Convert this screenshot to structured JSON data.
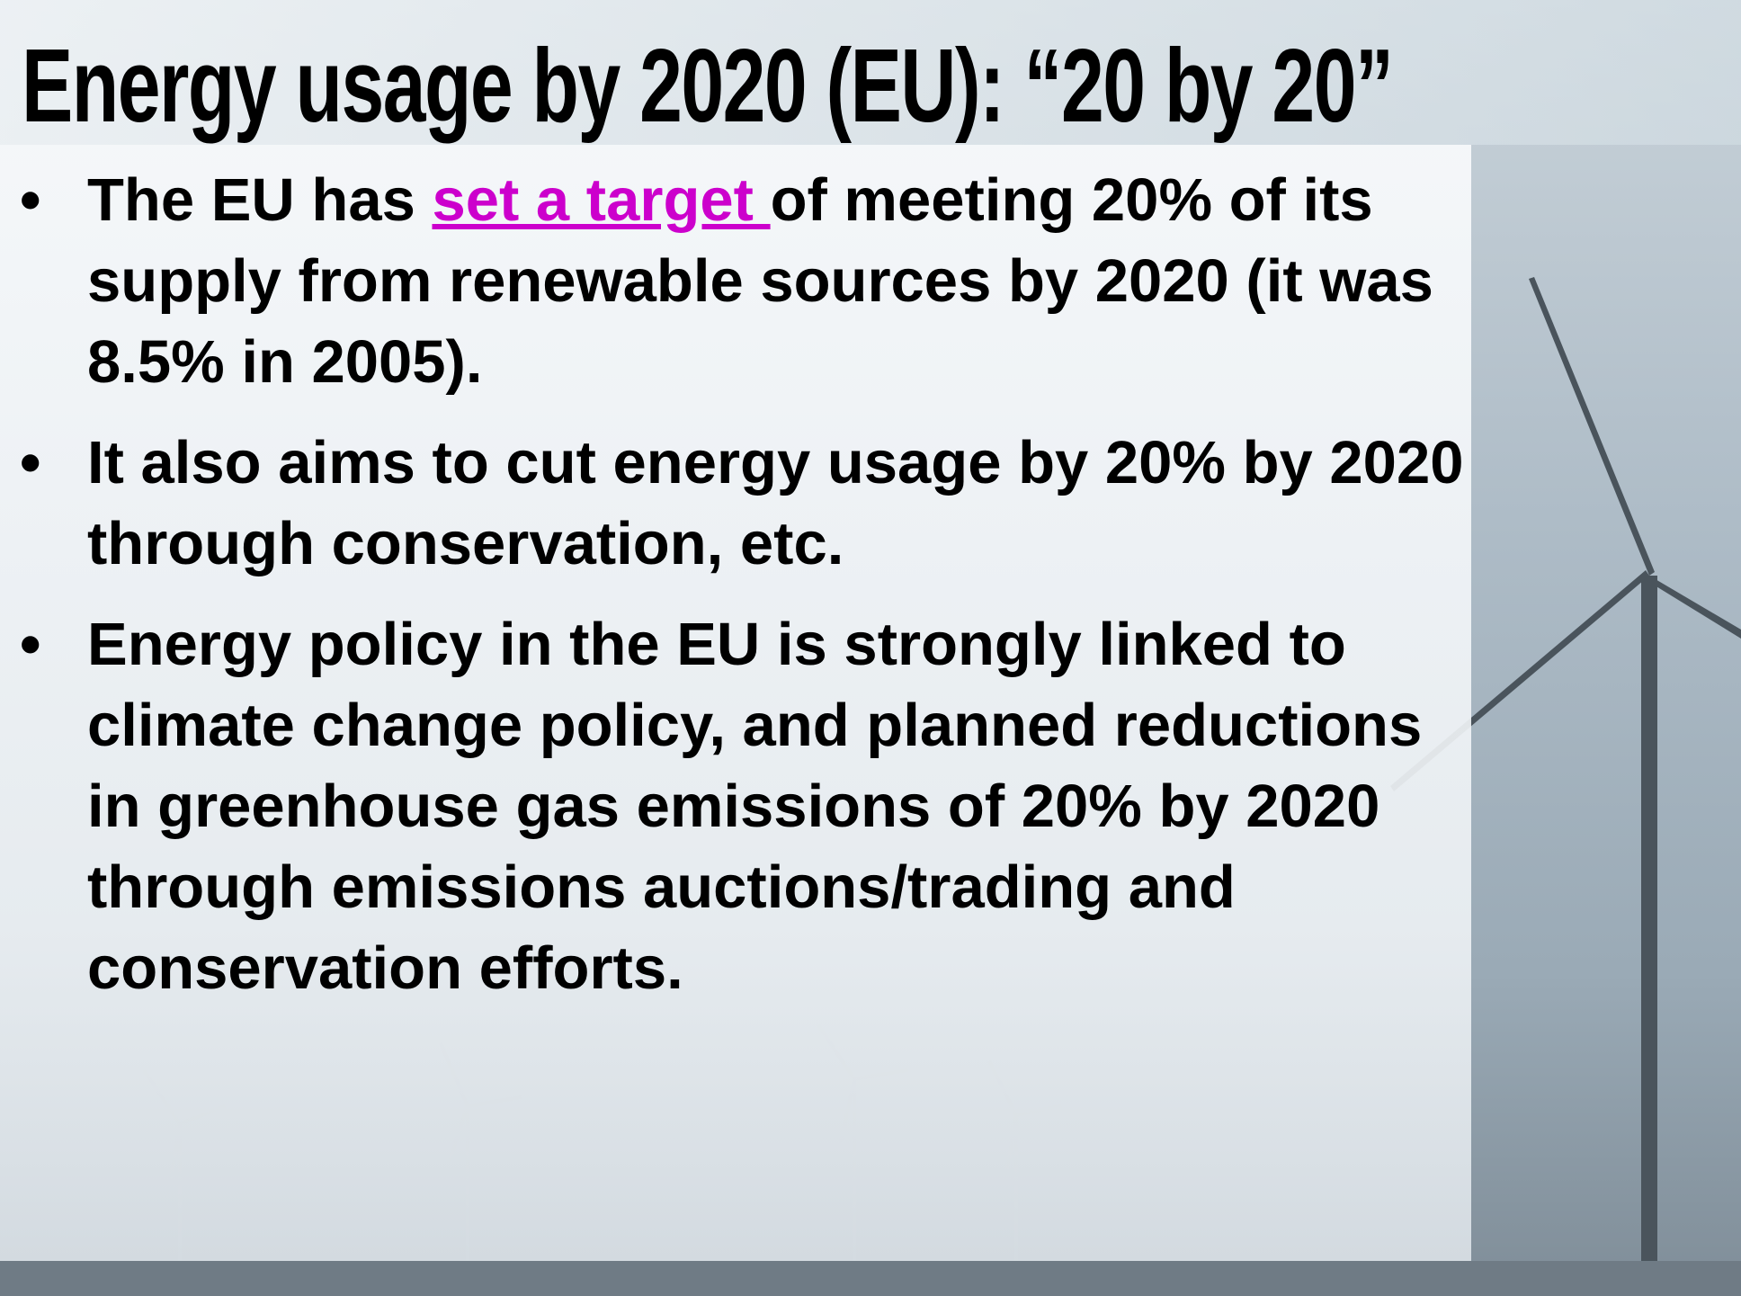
{
  "title": "Energy usage by 2020 (EU): “20 by 20”",
  "bullets": [
    {
      "before": "The EU has ",
      "link": "set a target ",
      "after": "of meeting 20% of its supply from renewable sources by 2020 (it was 8.5% in 2005)."
    },
    {
      "text": "It also aims to cut energy usage by 20% by 2020 through conservation, etc."
    },
    {
      "text": "Energy policy in the EU is strongly linked to climate change policy, and planned reductions in greenhouse gas emissions of 20% by 2020 through emissions auctions/trading and conservation efforts."
    }
  ]
}
